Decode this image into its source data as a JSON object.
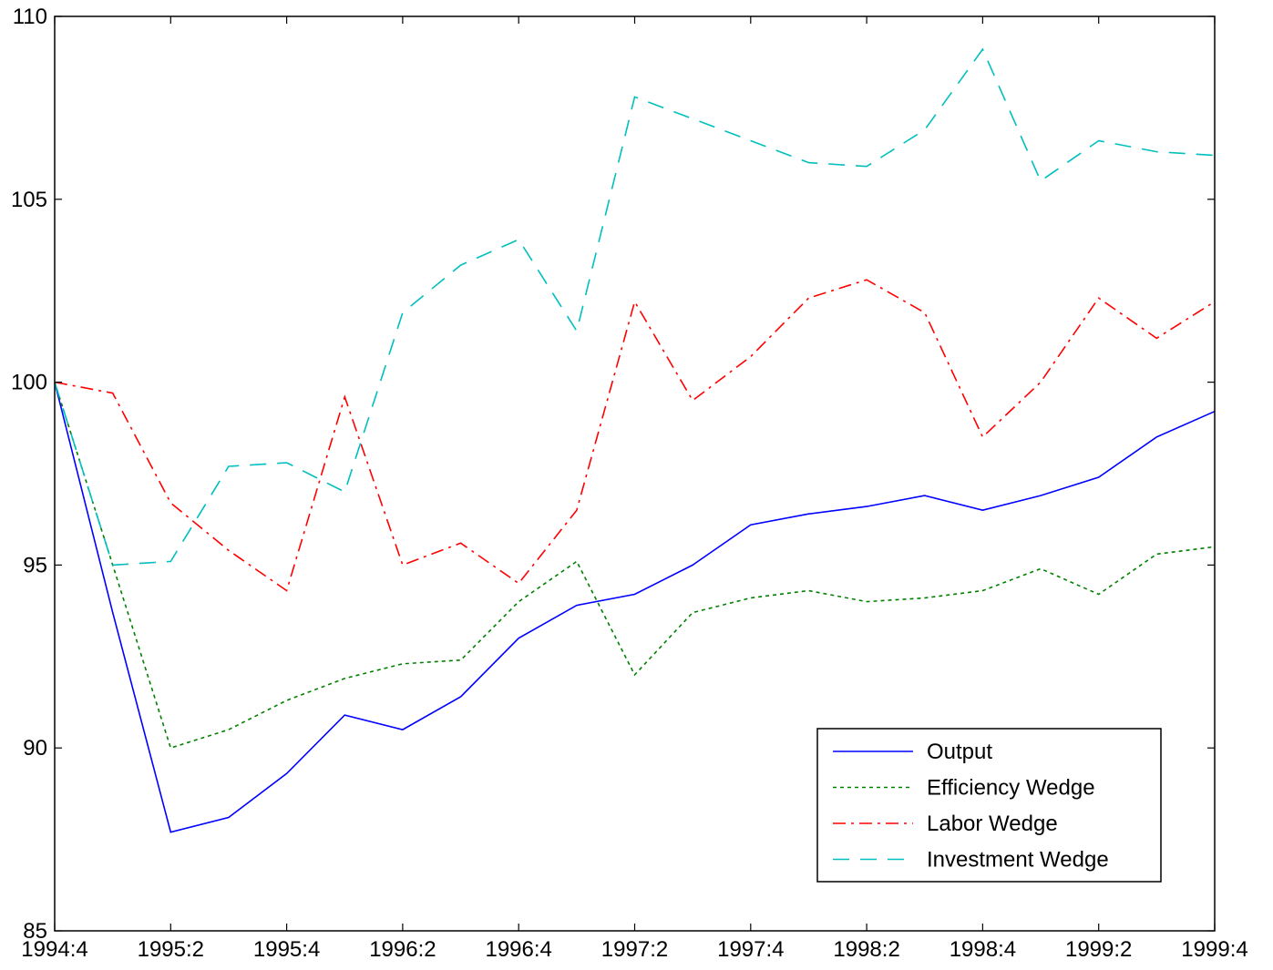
{
  "chart_data": {
    "type": "line",
    "title": "",
    "xlabel": "",
    "ylabel": "",
    "x": [
      "1994:4",
      "1995:1",
      "1995:2",
      "1995:3",
      "1995:4",
      "1996:1",
      "1996:2",
      "1996:3",
      "1996:4",
      "1997:1",
      "1997:2",
      "1997:3",
      "1997:4",
      "1998:1",
      "1998:2",
      "1998:3",
      "1998:4",
      "1999:1",
      "1999:2",
      "1999:3",
      "1999:4"
    ],
    "x_tick_labels": [
      "1994:4",
      "1995:2",
      "1995:4",
      "1996:2",
      "1996:4",
      "1997:2",
      "1997:4",
      "1998:2",
      "1998:4",
      "1999:2",
      "1999:4"
    ],
    "ylim": [
      85,
      110
    ],
    "y_ticks": [
      85,
      90,
      95,
      100,
      105,
      110
    ],
    "grid": false,
    "legend_position": "bottom-right",
    "series": [
      {
        "name": "Output",
        "color": "#0000ff",
        "dash": "solid",
        "values": [
          100.0,
          93.7,
          87.7,
          88.1,
          89.3,
          90.9,
          90.5,
          91.4,
          93.0,
          93.9,
          94.2,
          95.0,
          96.1,
          96.4,
          96.6,
          96.9,
          96.5,
          96.9,
          97.4,
          98.5,
          99.2
        ]
      },
      {
        "name": "Efficiency Wedge",
        "color": "#008000",
        "dash": "dotted",
        "values": [
          100.0,
          95.0,
          90.0,
          90.5,
          91.3,
          91.9,
          92.3,
          92.4,
          94.0,
          95.1,
          92.0,
          93.7,
          94.1,
          94.3,
          94.0,
          94.1,
          94.3,
          94.9,
          94.2,
          95.3,
          95.5
        ]
      },
      {
        "name": "Labor Wedge",
        "color": "#ff0000",
        "dash": "dashdot",
        "values": [
          100.0,
          99.7,
          96.7,
          95.4,
          94.3,
          99.6,
          95.0,
          95.6,
          94.5,
          96.5,
          102.2,
          99.5,
          100.7,
          102.3,
          102.8,
          101.9,
          98.5,
          100.0,
          102.3,
          101.2,
          102.2
        ]
      },
      {
        "name": "Investment Wedge",
        "color": "#00bfbf",
        "dash": "dashed",
        "values": [
          100.0,
          95.0,
          95.1,
          97.7,
          97.8,
          97.0,
          101.9,
          103.2,
          103.9,
          101.4,
          107.8,
          107.2,
          106.6,
          106.0,
          105.9,
          106.9,
          109.1,
          105.5,
          106.6,
          106.3,
          106.2
        ]
      }
    ]
  }
}
